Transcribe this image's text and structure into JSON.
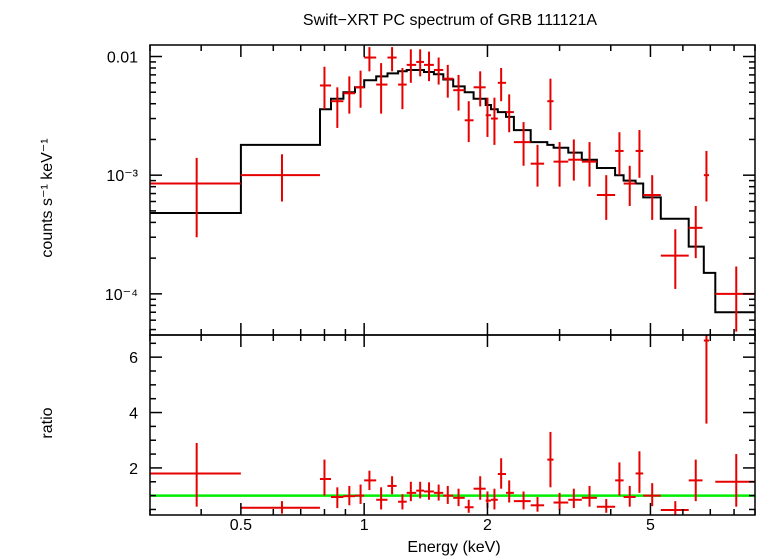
{
  "chart_data": [
    {
      "type": "scatter",
      "panel": "spectrum",
      "title": "Swift−XRT PC spectrum of GRB 111121A",
      "ylabel": "counts s⁻¹ keV⁻¹",
      "xscale": "log",
      "yscale": "log",
      "xlim": [
        0.3,
        9.0
      ],
      "ylim": [
        4.5e-05,
        0.0125
      ],
      "y_ticks": [
        {
          "value": 0.01,
          "label": "0.01"
        },
        {
          "value": 0.001,
          "label": "10⁻³"
        },
        {
          "value": 0.0001,
          "label": "10⁻⁴"
        }
      ],
      "colors": {
        "data": "#e60000",
        "model": "#000000"
      },
      "series": [
        {
          "kind": "errorbar",
          "points": [
            {
              "x": 0.39,
              "xlo": 0.3,
              "xhi": 0.5,
              "y": 0.00085,
              "ylo": 0.0003,
              "yhi": 0.0014
            },
            {
              "x": 0.63,
              "xlo": 0.5,
              "xhi": 0.78,
              "y": 0.001,
              "ylo": 0.0006,
              "yhi": 0.0015
            },
            {
              "x": 0.8,
              "xlo": 0.78,
              "xhi": 0.83,
              "y": 0.0057,
              "ylo": 0.0036,
              "yhi": 0.0082
            },
            {
              "x": 0.86,
              "xlo": 0.83,
              "xhi": 0.89,
              "y": 0.0042,
              "ylo": 0.0025,
              "yhi": 0.0055
            },
            {
              "x": 0.92,
              "xlo": 0.89,
              "xhi": 0.95,
              "y": 0.0049,
              "ylo": 0.0033,
              "yhi": 0.0068
            },
            {
              "x": 0.98,
              "xlo": 0.95,
              "xhi": 1.0,
              "y": 0.0055,
              "ylo": 0.0037,
              "yhi": 0.0076
            },
            {
              "x": 1.03,
              "xlo": 1.0,
              "xhi": 1.07,
              "y": 0.0098,
              "ylo": 0.0075,
              "yhi": 0.012
            },
            {
              "x": 1.1,
              "xlo": 1.07,
              "xhi": 1.14,
              "y": 0.0058,
              "ylo": 0.0033,
              "yhi": 0.0088
            },
            {
              "x": 1.17,
              "xlo": 1.14,
              "xhi": 1.2,
              "y": 0.0098,
              "ylo": 0.0075,
              "yhi": 0.012
            },
            {
              "x": 1.24,
              "xlo": 1.21,
              "xhi": 1.27,
              "y": 0.0058,
              "ylo": 0.0036,
              "yhi": 0.008
            },
            {
              "x": 1.3,
              "xlo": 1.27,
              "xhi": 1.34,
              "y": 0.0085,
              "ylo": 0.006,
              "yhi": 0.0115
            },
            {
              "x": 1.37,
              "xlo": 1.34,
              "xhi": 1.4,
              "y": 0.009,
              "ylo": 0.0068,
              "yhi": 0.0115
            },
            {
              "x": 1.44,
              "xlo": 1.4,
              "xhi": 1.48,
              "y": 0.0085,
              "ylo": 0.0062,
              "yhi": 0.011
            },
            {
              "x": 1.52,
              "xlo": 1.48,
              "xhi": 1.56,
              "y": 0.0077,
              "ylo": 0.0058,
              "yhi": 0.0098
            },
            {
              "x": 1.6,
              "xlo": 1.56,
              "xhi": 1.65,
              "y": 0.0065,
              "ylo": 0.0045,
              "yhi": 0.0085
            },
            {
              "x": 1.7,
              "xlo": 1.65,
              "xhi": 1.76,
              "y": 0.0052,
              "ylo": 0.0035,
              "yhi": 0.007
            },
            {
              "x": 1.8,
              "xlo": 1.76,
              "xhi": 1.85,
              "y": 0.0029,
              "ylo": 0.0019,
              "yhi": 0.0042
            },
            {
              "x": 1.92,
              "xlo": 1.85,
              "xhi": 1.98,
              "y": 0.0055,
              "ylo": 0.0038,
              "yhi": 0.0075
            },
            {
              "x": 2.0,
              "xlo": 1.98,
              "xhi": 2.04,
              "y": 0.0032,
              "ylo": 0.0021,
              "yhi": 0.0045
            },
            {
              "x": 2.08,
              "xlo": 2.04,
              "xhi": 2.12,
              "y": 0.003,
              "ylo": 0.0018,
              "yhi": 0.0045
            },
            {
              "x": 2.16,
              "xlo": 2.12,
              "xhi": 2.22,
              "y": 0.006,
              "ylo": 0.0042,
              "yhi": 0.008
            },
            {
              "x": 2.26,
              "xlo": 2.22,
              "xhi": 2.32,
              "y": 0.0034,
              "ylo": 0.0023,
              "yhi": 0.0048
            },
            {
              "x": 2.45,
              "xlo": 2.32,
              "xhi": 2.55,
              "y": 0.0019,
              "ylo": 0.0012,
              "yhi": 0.0028
            },
            {
              "x": 2.65,
              "xlo": 2.55,
              "xhi": 2.75,
              "y": 0.00125,
              "ylo": 0.0008,
              "yhi": 0.0018
            },
            {
              "x": 2.85,
              "xlo": 2.8,
              "xhi": 2.9,
              "y": 0.0042,
              "ylo": 0.0024,
              "yhi": 0.0065
            },
            {
              "x": 3.0,
              "xlo": 2.9,
              "xhi": 3.15,
              "y": 0.0013,
              "ylo": 0.0008,
              "yhi": 0.0019
            },
            {
              "x": 3.25,
              "xlo": 3.15,
              "xhi": 3.4,
              "y": 0.00135,
              "ylo": 0.0009,
              "yhi": 0.002
            },
            {
              "x": 3.55,
              "xlo": 3.4,
              "xhi": 3.7,
              "y": 0.0013,
              "ylo": 0.0008,
              "yhi": 0.0019
            },
            {
              "x": 3.9,
              "xlo": 3.7,
              "xhi": 4.1,
              "y": 0.00068,
              "ylo": 0.00042,
              "yhi": 0.001
            },
            {
              "x": 4.2,
              "xlo": 4.1,
              "xhi": 4.3,
              "y": 0.0016,
              "ylo": 0.001,
              "yhi": 0.0023
            },
            {
              "x": 4.45,
              "xlo": 4.3,
              "xhi": 4.6,
              "y": 0.00085,
              "ylo": 0.00055,
              "yhi": 0.0012
            },
            {
              "x": 4.7,
              "xlo": 4.6,
              "xhi": 4.8,
              "y": 0.0016,
              "ylo": 0.00095,
              "yhi": 0.0024
            },
            {
              "x": 5.05,
              "xlo": 4.8,
              "xhi": 5.3,
              "y": 0.00068,
              "ylo": 0.00042,
              "yhi": 0.001
            },
            {
              "x": 5.75,
              "xlo": 5.3,
              "xhi": 6.2,
              "y": 0.00021,
              "ylo": 0.00011,
              "yhi": 0.00035
            },
            {
              "x": 6.45,
              "xlo": 6.2,
              "xhi": 6.7,
              "y": 0.00036,
              "ylo": 0.0002,
              "yhi": 0.00055
            },
            {
              "x": 6.85,
              "xlo": 6.75,
              "xhi": 6.95,
              "y": 0.001,
              "ylo": 0.0006,
              "yhi": 0.0016
            },
            {
              "x": 8.1,
              "xlo": 7.2,
              "xhi": 9.0,
              "y": 0.0001,
              "ylo": 4.8e-05,
              "yhi": 0.00017
            }
          ]
        },
        {
          "kind": "model-step",
          "steps": [
            {
              "x0": 0.3,
              "x1": 0.5,
              "y": 0.00048
            },
            {
              "x0": 0.5,
              "x1": 0.78,
              "y": 0.0018
            },
            {
              "x0": 0.78,
              "x1": 0.83,
              "y": 0.0036
            },
            {
              "x0": 0.83,
              "x1": 0.89,
              "y": 0.0044
            },
            {
              "x0": 0.89,
              "x1": 0.95,
              "y": 0.005
            },
            {
              "x0": 0.95,
              "x1": 1.0,
              "y": 0.0055
            },
            {
              "x0": 1.0,
              "x1": 1.07,
              "y": 0.0063
            },
            {
              "x0": 1.07,
              "x1": 1.14,
              "y": 0.0068
            },
            {
              "x0": 1.14,
              "x1": 1.21,
              "y": 0.0072
            },
            {
              "x0": 1.21,
              "x1": 1.27,
              "y": 0.0075
            },
            {
              "x0": 1.27,
              "x1": 1.34,
              "y": 0.0077
            },
            {
              "x0": 1.34,
              "x1": 1.4,
              "y": 0.0077
            },
            {
              "x0": 1.4,
              "x1": 1.48,
              "y": 0.0074
            },
            {
              "x0": 1.48,
              "x1": 1.56,
              "y": 0.0071
            },
            {
              "x0": 1.56,
              "x1": 1.65,
              "y": 0.0064
            },
            {
              "x0": 1.65,
              "x1": 1.76,
              "y": 0.0056
            },
            {
              "x0": 1.76,
              "x1": 1.85,
              "y": 0.005
            },
            {
              "x0": 1.85,
              "x1": 1.98,
              "y": 0.0044
            },
            {
              "x0": 1.98,
              "x1": 2.04,
              "y": 0.0039
            },
            {
              "x0": 2.04,
              "x1": 2.12,
              "y": 0.0036
            },
            {
              "x0": 2.12,
              "x1": 2.22,
              "y": 0.0034
            },
            {
              "x0": 2.22,
              "x1": 2.32,
              "y": 0.0031
            },
            {
              "x0": 2.32,
              "x1": 2.55,
              "y": 0.0024
            },
            {
              "x0": 2.55,
              "x1": 2.8,
              "y": 0.0019
            },
            {
              "x0": 2.8,
              "x1": 2.9,
              "y": 0.0018
            },
            {
              "x0": 2.9,
              "x1": 3.15,
              "y": 0.0017
            },
            {
              "x0": 3.15,
              "x1": 3.4,
              "y": 0.00155
            },
            {
              "x0": 3.4,
              "x1": 3.7,
              "y": 0.00135
            },
            {
              "x0": 3.7,
              "x1": 4.1,
              "y": 0.00115
            },
            {
              "x0": 4.1,
              "x1": 4.3,
              "y": 0.001
            },
            {
              "x0": 4.3,
              "x1": 4.6,
              "y": 0.0009
            },
            {
              "x0": 4.6,
              "x1": 4.8,
              "y": 0.00085
            },
            {
              "x0": 4.8,
              "x1": 5.3,
              "y": 0.00065
            },
            {
              "x0": 5.3,
              "x1": 6.2,
              "y": 0.00043
            },
            {
              "x0": 6.2,
              "x1": 6.75,
              "y": 0.00025
            },
            {
              "x0": 6.75,
              "x1": 7.2,
              "y": 0.00015
            },
            {
              "x0": 7.2,
              "x1": 9.0,
              "y": 7e-05
            }
          ]
        }
      ]
    },
    {
      "type": "scatter",
      "panel": "ratio",
      "xlabel": "Energy (keV)",
      "ylabel": "ratio",
      "xscale": "log",
      "yscale": "linear",
      "xlim": [
        0.3,
        9.0
      ],
      "ylim": [
        0.3,
        6.8
      ],
      "x_ticks": [
        {
          "value": 0.5,
          "label": "0.5"
        },
        {
          "value": 1,
          "label": "1"
        },
        {
          "value": 2,
          "label": "2"
        },
        {
          "value": 5,
          "label": "5"
        }
      ],
      "y_ticks": [
        {
          "value": 2,
          "label": "2"
        },
        {
          "value": 4,
          "label": "4"
        },
        {
          "value": 6,
          "label": "6"
        }
      ],
      "reference_line": {
        "y": 1,
        "color": "#00ee00"
      },
      "series": [
        {
          "kind": "errorbar",
          "points": [
            {
              "x": 0.39,
              "xlo": 0.3,
              "xhi": 0.5,
              "y": 1.8,
              "ylo": 0.6,
              "yhi": 2.9
            },
            {
              "x": 0.63,
              "xlo": 0.5,
              "xhi": 0.78,
              "y": 0.56,
              "ylo": 0.35,
              "yhi": 0.8
            },
            {
              "x": 0.8,
              "xlo": 0.78,
              "xhi": 0.83,
              "y": 1.6,
              "ylo": 1.0,
              "yhi": 2.3
            },
            {
              "x": 0.86,
              "xlo": 0.83,
              "xhi": 0.89,
              "y": 0.95,
              "ylo": 0.55,
              "yhi": 1.3
            },
            {
              "x": 0.92,
              "xlo": 0.89,
              "xhi": 0.95,
              "y": 0.98,
              "ylo": 0.65,
              "yhi": 1.35
            },
            {
              "x": 0.98,
              "xlo": 0.95,
              "xhi": 1.0,
              "y": 1.0,
              "ylo": 0.7,
              "yhi": 1.4
            },
            {
              "x": 1.03,
              "xlo": 1.0,
              "xhi": 1.07,
              "y": 1.55,
              "ylo": 1.2,
              "yhi": 1.9
            },
            {
              "x": 1.1,
              "xlo": 1.07,
              "xhi": 1.14,
              "y": 0.85,
              "ylo": 0.5,
              "yhi": 1.3
            },
            {
              "x": 1.17,
              "xlo": 1.14,
              "xhi": 1.2,
              "y": 1.35,
              "ylo": 1.05,
              "yhi": 1.7
            },
            {
              "x": 1.24,
              "xlo": 1.21,
              "xhi": 1.27,
              "y": 0.78,
              "ylo": 0.5,
              "yhi": 1.05
            },
            {
              "x": 1.3,
              "xlo": 1.27,
              "xhi": 1.34,
              "y": 1.1,
              "ylo": 0.8,
              "yhi": 1.5
            },
            {
              "x": 1.37,
              "xlo": 1.34,
              "xhi": 1.4,
              "y": 1.18,
              "ylo": 0.9,
              "yhi": 1.5
            },
            {
              "x": 1.44,
              "xlo": 1.4,
              "xhi": 1.48,
              "y": 1.15,
              "ylo": 0.85,
              "yhi": 1.48
            },
            {
              "x": 1.52,
              "xlo": 1.48,
              "xhi": 1.56,
              "y": 1.1,
              "ylo": 0.82,
              "yhi": 1.4
            },
            {
              "x": 1.6,
              "xlo": 1.56,
              "xhi": 1.65,
              "y": 1.0,
              "ylo": 0.7,
              "yhi": 1.35
            },
            {
              "x": 1.7,
              "xlo": 1.65,
              "xhi": 1.76,
              "y": 0.92,
              "ylo": 0.62,
              "yhi": 1.25
            },
            {
              "x": 1.8,
              "xlo": 1.76,
              "xhi": 1.85,
              "y": 0.58,
              "ylo": 0.38,
              "yhi": 0.85
            },
            {
              "x": 1.92,
              "xlo": 1.85,
              "xhi": 1.98,
              "y": 1.25,
              "ylo": 0.85,
              "yhi": 1.7
            },
            {
              "x": 2.0,
              "xlo": 1.98,
              "xhi": 2.04,
              "y": 0.82,
              "ylo": 0.55,
              "yhi": 1.15
            },
            {
              "x": 2.08,
              "xlo": 2.04,
              "xhi": 2.12,
              "y": 0.85,
              "ylo": 0.5,
              "yhi": 1.25
            },
            {
              "x": 2.16,
              "xlo": 2.12,
              "xhi": 2.22,
              "y": 1.78,
              "ylo": 1.25,
              "yhi": 2.35
            },
            {
              "x": 2.26,
              "xlo": 2.22,
              "xhi": 2.32,
              "y": 1.1,
              "ylo": 0.75,
              "yhi": 1.55
            },
            {
              "x": 2.45,
              "xlo": 2.32,
              "xhi": 2.55,
              "y": 0.8,
              "ylo": 0.5,
              "yhi": 1.15
            },
            {
              "x": 2.65,
              "xlo": 2.55,
              "xhi": 2.75,
              "y": 0.65,
              "ylo": 0.42,
              "yhi": 0.95
            },
            {
              "x": 2.85,
              "xlo": 2.8,
              "xhi": 2.9,
              "y": 2.3,
              "ylo": 1.3,
              "yhi": 3.3
            },
            {
              "x": 3.0,
              "xlo": 2.9,
              "xhi": 3.15,
              "y": 0.75,
              "ylo": 0.48,
              "yhi": 1.1
            },
            {
              "x": 3.25,
              "xlo": 3.15,
              "xhi": 3.4,
              "y": 0.85,
              "ylo": 0.55,
              "yhi": 1.25
            },
            {
              "x": 3.55,
              "xlo": 3.4,
              "xhi": 3.7,
              "y": 0.92,
              "ylo": 0.6,
              "yhi": 1.35
            },
            {
              "x": 3.9,
              "xlo": 3.7,
              "xhi": 4.1,
              "y": 0.6,
              "ylo": 0.38,
              "yhi": 0.88
            },
            {
              "x": 4.2,
              "xlo": 4.1,
              "xhi": 4.3,
              "y": 1.55,
              "ylo": 1.0,
              "yhi": 2.2
            },
            {
              "x": 4.45,
              "xlo": 4.3,
              "xhi": 4.6,
              "y": 0.95,
              "ylo": 0.6,
              "yhi": 1.35
            },
            {
              "x": 4.7,
              "xlo": 4.6,
              "xhi": 4.8,
              "y": 1.8,
              "ylo": 1.1,
              "yhi": 2.6
            },
            {
              "x": 5.05,
              "xlo": 4.8,
              "xhi": 5.3,
              "y": 1.0,
              "ylo": 0.62,
              "yhi": 1.45
            },
            {
              "x": 5.75,
              "xlo": 5.3,
              "xhi": 6.2,
              "y": 0.48,
              "ylo": 0.25,
              "yhi": 0.8
            },
            {
              "x": 6.45,
              "xlo": 6.2,
              "xhi": 6.7,
              "y": 1.55,
              "ylo": 0.8,
              "yhi": 2.3
            },
            {
              "x": 6.85,
              "xlo": 6.75,
              "xhi": 6.95,
              "y": 6.6,
              "ylo": 3.6,
              "yhi": 6.8
            },
            {
              "x": 8.1,
              "xlo": 7.2,
              "xhi": 9.0,
              "y": 1.5,
              "ylo": 0.6,
              "yhi": 2.5
            }
          ]
        }
      ]
    }
  ]
}
